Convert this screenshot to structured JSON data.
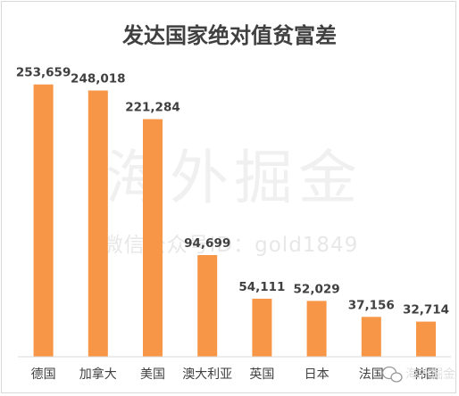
{
  "chart_data": {
    "type": "bar",
    "title": "发达国家绝对值贫富差",
    "categories": [
      "德国",
      "加拿大",
      "美国",
      "澳大利亚",
      "英国",
      "日本",
      "法国",
      "韩国"
    ],
    "values": [
      253659,
      248018,
      221284,
      94699,
      54111,
      52029,
      37156,
      32714
    ],
    "value_labels": [
      "253,659",
      "248,018",
      "221,284",
      "94,699",
      "54,111",
      "52,029",
      "37,156",
      "32,714"
    ],
    "xlabel": "",
    "ylabel": "",
    "ylim": [
      0,
      270000
    ],
    "grid": false,
    "legend": "none",
    "bar_color": "#f79646"
  },
  "watermark": {
    "main": "海外掘金",
    "sub": "微信公众号ID：gold1849",
    "corner": "海外掘金"
  }
}
